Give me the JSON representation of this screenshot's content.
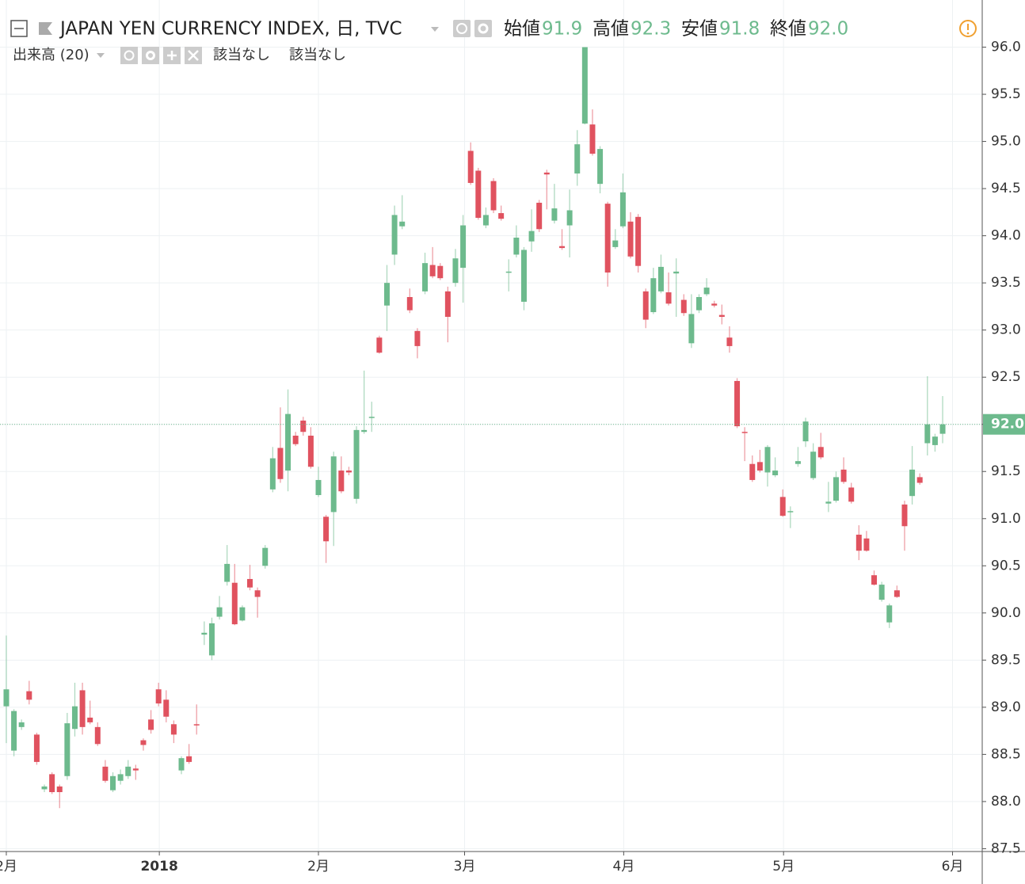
{
  "chart_data": {
    "type": "candlestick",
    "title": "JAPAN YEN CURRENCY INDEX, 日, TVC",
    "ohlc_legend": [
      {
        "name": "始値",
        "text": "91.9"
      },
      {
        "name": "高値",
        "text": "92.3"
      },
      {
        "name": "安値",
        "text": "91.8"
      },
      {
        "name": "終値",
        "text": "92.0"
      }
    ],
    "volume_label": "出来高 (20)",
    "volume_values": [
      "該当なし",
      "該当なし"
    ],
    "up_color": "#6dba8d",
    "down_color": "#e0525f",
    "grid": true,
    "last_price": {
      "value": 92.0,
      "label": "92.0"
    },
    "xlim": [
      -0.83,
      128.2
    ],
    "xticks": [
      {
        "value": 0,
        "label": "2月"
      },
      {
        "value": 20.1,
        "label": "2018"
      },
      {
        "value": 41.0,
        "label": "2月"
      },
      {
        "value": 60.2,
        "label": "3月"
      },
      {
        "value": 81.1,
        "label": "4月"
      },
      {
        "value": 102.1,
        "label": "5月"
      },
      {
        "value": 124.3,
        "label": "6月"
      }
    ],
    "ylim": [
      87.47,
      96.5
    ],
    "yticks": [
      {
        "value": 87.5,
        "label": "87.5"
      },
      {
        "value": 88,
        "label": "88.0"
      },
      {
        "value": 88.5,
        "label": "88.5"
      },
      {
        "value": 89,
        "label": "89.0"
      },
      {
        "value": 89.5,
        "label": "89.5"
      },
      {
        "value": 90,
        "label": "90.0"
      },
      {
        "value": 90.5,
        "label": "90.5"
      },
      {
        "value": 91,
        "label": "91.0"
      },
      {
        "value": 91.5,
        "label": "91.5"
      },
      {
        "value": 92,
        "label": "92.0"
      },
      {
        "value": 92.5,
        "label": "92.5"
      },
      {
        "value": 93,
        "label": "93.0"
      },
      {
        "value": 93.5,
        "label": "93.5"
      },
      {
        "value": 94,
        "label": "94.0"
      },
      {
        "value": 94.5,
        "label": "94.5"
      },
      {
        "value": 95,
        "label": "95.0"
      },
      {
        "value": 95.5,
        "label": "95.5"
      },
      {
        "value": 96,
        "label": "96.0"
      }
    ],
    "open": [
      89.01,
      88.54,
      88.79,
      89.17,
      88.71,
      88.13,
      88.29,
      88.16,
      88.27,
      88.77,
      89.18,
      88.89,
      88.79,
      88.37,
      88.12,
      88.22,
      88.27,
      88.35,
      88.65,
      88.87,
      89.19,
      89.08,
      88.82,
      88.33,
      88.48,
      88.82,
      89.77,
      89.55,
      89.96,
      90.33,
      90.32,
      89.92,
      90.36,
      90.24,
      90.5,
      91.31,
      91.75,
      91.51,
      91.88,
      92.04,
      91.88,
      91.25,
      91.02,
      91.07,
      91.51,
      91.51,
      91.21,
      91.92,
      92.07,
      92.92,
      93.26,
      93.8,
      94.1,
      93.35,
      92.99,
      93.41,
      93.69,
      93.68,
      93.41,
      93.5,
      93.66,
      94.9,
      94.69,
      94.11,
      94.58,
      94.24,
      93.61,
      93.8,
      93.3,
      93.94,
      94.35,
      94.67,
      94.16,
      93.89,
      94.11,
      94.66,
      95.19,
      95.18,
      94.55,
      94.34,
      93.88,
      94.1,
      94.15,
      94.2,
      93.41,
      93.19,
      93.41,
      93.4,
      93.6,
      93.32,
      92.86,
      93.21,
      93.38,
      93.28,
      93.16,
      92.92,
      92.46,
      91.92,
      91.58,
      91.6,
      91.49,
      91.46,
      91.23,
      91.07,
      91.58,
      91.82,
      91.43,
      91.76,
      91.16,
      91.19,
      91.52,
      91.33,
      90.83,
      90.79,
      90.4,
      90.14,
      89.9,
      90.24,
      91.15,
      91.24,
      91.44,
      91.8,
      91.78,
      91.9
    ],
    "high": [
      89.76,
      88.98,
      88.87,
      89.28,
      88.73,
      88.18,
      88.31,
      88.18,
      88.94,
      89.26,
      89.26,
      89.07,
      88.84,
      88.44,
      88.31,
      88.34,
      88.44,
      88.39,
      88.67,
      88.97,
      89.26,
      89.18,
      88.86,
      88.48,
      88.61,
      89.03,
      89.91,
      89.95,
      90.18,
      90.72,
      90.52,
      90.08,
      90.51,
      90.27,
      90.72,
      91.76,
      92.18,
      92.37,
      91.92,
      92.08,
      91.97,
      91.55,
      91.04,
      91.71,
      91.66,
      91.55,
      91.98,
      92.57,
      92.24,
      92.94,
      93.69,
      94.32,
      94.43,
      93.44,
      93.02,
      93.82,
      93.88,
      93.71,
      93.46,
      93.86,
      94.22,
      94.99,
      94.72,
      94.3,
      94.61,
      94.32,
      93.75,
      94.11,
      93.88,
      94.28,
      94.38,
      94.7,
      94.55,
      94.07,
      94.49,
      95.12,
      96.0,
      95.34,
      94.95,
      94.36,
      94.07,
      94.66,
      94.25,
      94.23,
      93.44,
      93.66,
      93.8,
      93.61,
      93.76,
      93.38,
      93.38,
      93.38,
      93.55,
      93.31,
      93.27,
      93.04,
      92.49,
      91.97,
      91.67,
      91.73,
      91.78,
      91.65,
      91.31,
      91.13,
      91.76,
      92.07,
      91.8,
      91.91,
      91.39,
      91.5,
      91.65,
      91.38,
      90.93,
      90.87,
      90.45,
      90.33,
      90.1,
      90.29,
      91.19,
      91.77,
      91.48,
      92.51,
      91.9,
      92.3
    ],
    "low": [
      88.62,
      88.48,
      88.76,
      89.03,
      88.39,
      88.1,
      88.08,
      87.93,
      88.23,
      88.69,
      88.71,
      88.82,
      88.59,
      88.2,
      88.1,
      88.18,
      88.24,
      88.23,
      88.54,
      88.72,
      89.01,
      88.84,
      88.62,
      88.29,
      88.4,
      88.71,
      89.66,
      89.5,
      89.93,
      90.29,
      89.87,
      89.91,
      90.24,
      89.95,
      90.47,
      91.28,
      91.38,
      91.29,
      91.77,
      91.88,
      91.53,
      91.23,
      90.53,
      90.71,
      91.27,
      91.46,
      91.16,
      91.9,
      91.92,
      92.75,
      92.99,
      93.69,
      94.07,
      93.18,
      92.7,
      93.38,
      93.55,
      93.53,
      92.87,
      93.46,
      93.29,
      94.54,
      94.17,
      94.08,
      94.24,
      94.16,
      93.41,
      93.77,
      93.21,
      93.83,
      94.04,
      94.28,
      94.13,
      93.85,
      93.77,
      94.53,
      95.18,
      94.85,
      94.45,
      93.46,
      93.86,
      94.08,
      93.76,
      93.61,
      93.02,
      93.17,
      93.39,
      93.26,
      93.14,
      93.15,
      92.81,
      93.18,
      93.36,
      93.24,
      93.06,
      92.76,
      91.96,
      91.61,
      91.39,
      91.49,
      91.34,
      91.44,
      91.02,
      90.9,
      91.55,
      91.76,
      91.41,
      91.63,
      91.07,
      91.17,
      91.37,
      91.16,
      90.56,
      90.65,
      90.29,
      90.12,
      89.84,
      90.16,
      90.66,
      91.15,
      91.36,
      91.67,
      91.71,
      91.8
    ],
    "close": [
      89.19,
      88.96,
      88.84,
      89.08,
      88.42,
      88.16,
      88.1,
      88.1,
      88.83,
      89.01,
      88.79,
      88.84,
      88.61,
      88.22,
      88.27,
      88.29,
      88.37,
      88.33,
      88.6,
      88.76,
      89.04,
      88.9,
      88.71,
      88.46,
      88.42,
      88.81,
      89.79,
      89.89,
      90.06,
      90.52,
      89.88,
      90.06,
      90.27,
      90.17,
      90.69,
      91.64,
      91.42,
      92.11,
      91.79,
      91.92,
      91.55,
      91.41,
      90.76,
      91.66,
      91.29,
      91.49,
      91.94,
      91.94,
      92.08,
      92.76,
      93.5,
      94.22,
      94.15,
      93.21,
      92.83,
      93.71,
      93.57,
      93.55,
      93.14,
      93.76,
      94.11,
      94.56,
      94.19,
      94.22,
      94.27,
      94.18,
      93.62,
      93.98,
      93.85,
      94.05,
      94.07,
      94.65,
      94.29,
      93.87,
      94.27,
      94.97,
      96.0,
      94.87,
      94.92,
      93.61,
      93.95,
      94.46,
      93.78,
      93.68,
      93.11,
      93.55,
      93.67,
      93.28,
      93.62,
      93.18,
      93.17,
      93.35,
      93.45,
      93.26,
      93.14,
      92.83,
      91.98,
      91.91,
      91.41,
      91.51,
      91.76,
      91.51,
      91.03,
      91.08,
      91.61,
      92.03,
      91.71,
      91.65,
      91.18,
      91.44,
      91.39,
      91.18,
      90.66,
      90.66,
      90.3,
      90.3,
      90.08,
      90.17,
      90.92,
      91.52,
      91.38,
      92.0,
      91.87,
      92.0
    ]
  }
}
